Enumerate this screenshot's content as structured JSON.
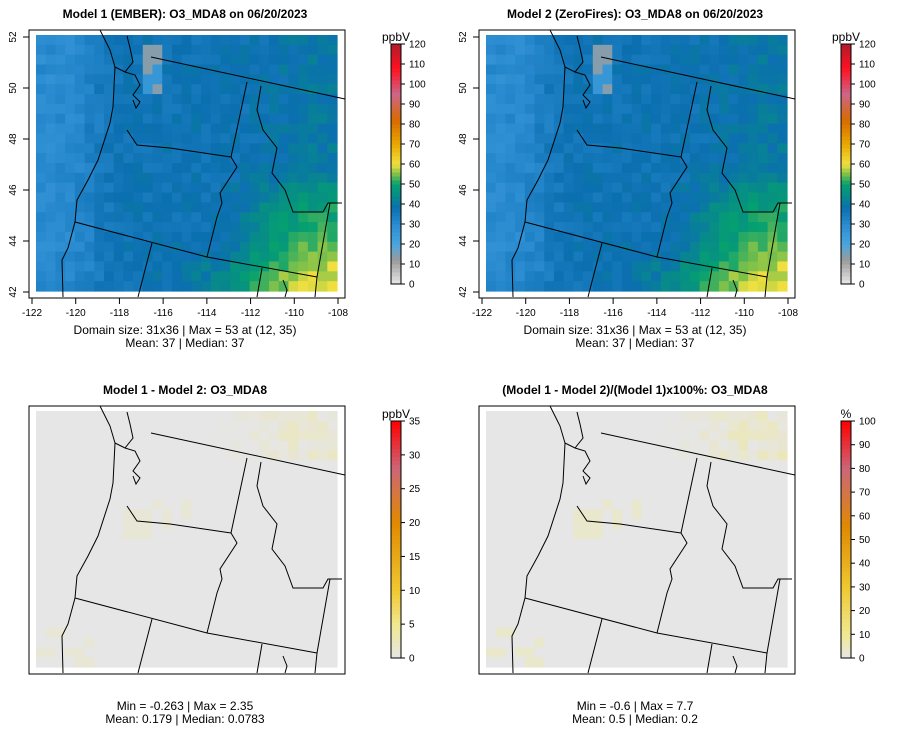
{
  "panels": [
    {
      "title": "Model 1 (EMBER): O3_MDA8 on 06/20/2023",
      "unit": "ppbV",
      "kind": "conc",
      "axes": true,
      "stats_line1": "Domain size: 31x36 | Max = 53 at (12, 35)",
      "stats_line2": "Mean: 37 |  Median: 37",
      "colorbar_ticks": [
        0,
        10,
        20,
        30,
        40,
        50,
        60,
        70,
        80,
        90,
        100,
        110,
        120
      ],
      "range": [
        0,
        120
      ]
    },
    {
      "title": "Model 2 (ZeroFires): O3_MDA8 on 06/20/2023",
      "unit": "ppbV",
      "kind": "conc",
      "axes": true,
      "stats_line1": "Domain size: 31x36 | Max = 53 at (12, 35)",
      "stats_line2": "Mean: 37 |  Median: 37",
      "colorbar_ticks": [
        0,
        10,
        20,
        30,
        40,
        50,
        60,
        70,
        80,
        90,
        100,
        110,
        120
      ],
      "range": [
        0,
        120
      ]
    },
    {
      "title": "Model 1 - Model 2: O3_MDA8",
      "unit": "ppbV",
      "kind": "diff",
      "axes": false,
      "stats_line1": "Min = -0.263 | Max = 2.35",
      "stats_line2": "Mean: 0.179 |  Median: 0.0783",
      "colorbar_ticks": [
        0,
        5,
        10,
        15,
        20,
        25,
        30,
        35
      ],
      "range": [
        0,
        35
      ]
    },
    {
      "title": "(Model 1 - Model 2)/(Model 1)x100%: O3_MDA8",
      "unit": "%",
      "kind": "pct",
      "axes": false,
      "stats_line1": "Min = -0.6 | Max = 7.7",
      "stats_line2": "Mean: 0.5 |  Median: 0.2",
      "colorbar_ticks": [
        0,
        10,
        20,
        30,
        40,
        50,
        60,
        70,
        80,
        90,
        100
      ],
      "range": [
        0,
        100
      ]
    }
  ],
  "axes": {
    "x_ticks": [
      -122,
      -120,
      -118,
      -116,
      -114,
      -112,
      -110,
      -108
    ],
    "y_ticks": [
      52,
      50,
      48,
      46,
      44,
      42
    ]
  },
  "colormaps": {
    "conc": [
      [
        0,
        "#e8e8e8"
      ],
      [
        12,
        "#9a9a9a"
      ],
      [
        20,
        "#4aa6e0"
      ],
      [
        30,
        "#2a8bd0"
      ],
      [
        38,
        "#0b6fb0"
      ],
      [
        44,
        "#078a8a"
      ],
      [
        50,
        "#05a070"
      ],
      [
        55,
        "#7cc04a"
      ],
      [
        60,
        "#f0e040"
      ],
      [
        70,
        "#e8a800"
      ],
      [
        82,
        "#d86a00"
      ],
      [
        95,
        "#cc6688"
      ],
      [
        108,
        "#ff1020"
      ],
      [
        120,
        "#b01c2c"
      ]
    ],
    "diff": [
      [
        0,
        "#e6e6e6"
      ],
      [
        5,
        "#f0e890"
      ],
      [
        10,
        "#f0c830"
      ],
      [
        20,
        "#e08a00"
      ],
      [
        28,
        "#cc6677"
      ],
      [
        35,
        "#ff0000"
      ]
    ],
    "pct": [
      [
        0,
        "#e6e6e6"
      ],
      [
        10,
        "#f0e890"
      ],
      [
        30,
        "#f0c830"
      ],
      [
        55,
        "#e08a00"
      ],
      [
        80,
        "#cc6677"
      ],
      [
        100,
        "#ff0000"
      ]
    ]
  }
}
